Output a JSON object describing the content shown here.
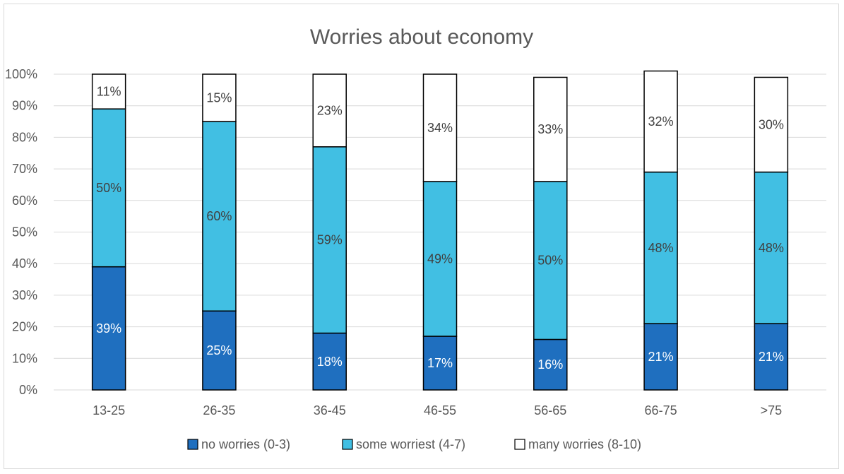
{
  "chart_data": {
    "type": "bar",
    "stacked": true,
    "title": "Worries about economy",
    "xlabel": "",
    "ylabel": "",
    "ylim": [
      0,
      100
    ],
    "y_ticks": [
      "0%",
      "10%",
      "20%",
      "30%",
      "40%",
      "50%",
      "60%",
      "70%",
      "80%",
      "90%",
      "100%"
    ],
    "grid": true,
    "legend_position": "bottom",
    "categories": [
      "13-25",
      "26-35",
      "36-45",
      "46-55",
      "56-65",
      "66-75",
      ">75"
    ],
    "series": [
      {
        "name": "no worries (0-3)",
        "color": "#1f6fbf",
        "label_color": "#ffffff",
        "values": [
          39,
          25,
          18,
          17,
          16,
          21,
          21
        ],
        "labels": [
          "39%",
          "25%",
          "18%",
          "17%",
          "16%",
          "21%",
          "21%"
        ]
      },
      {
        "name": "some worriest (4-7)",
        "color": "#41bfe3",
        "label_color": "#404040",
        "values": [
          50,
          60,
          59,
          49,
          50,
          48,
          48
        ],
        "labels": [
          "50%",
          "60%",
          "59%",
          "49%",
          "50%",
          "48%",
          "48%"
        ]
      },
      {
        "name": "many worries (8-10)",
        "color": "#ffffff",
        "label_color": "#404040",
        "values": [
          11,
          15,
          23,
          34,
          33,
          32,
          30
        ],
        "labels": [
          "11%",
          "15%",
          "23%",
          "34%",
          "33%",
          "32%",
          "30%"
        ]
      }
    ]
  }
}
